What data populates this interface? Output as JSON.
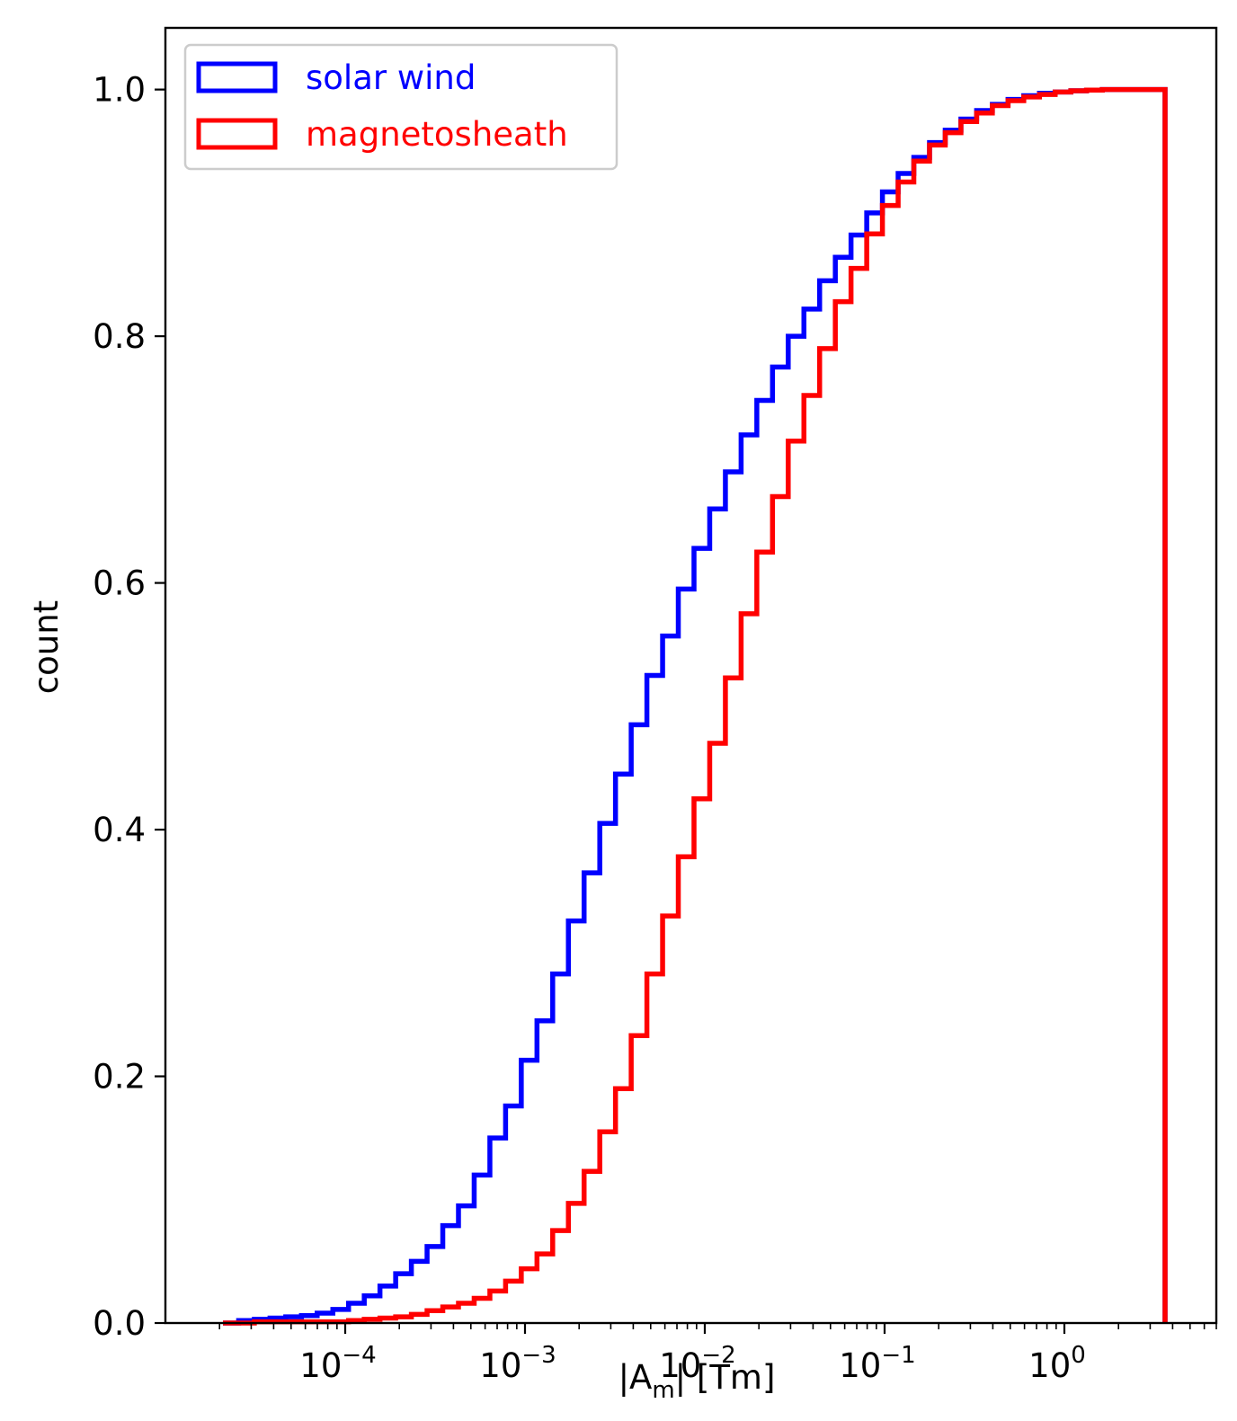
{
  "chart_data": {
    "type": "histogram-step-cumulative",
    "xlabel_base": "|A",
    "xlabel_sub": "m",
    "xlabel_tail": "| [Tm]",
    "ylabel": "count",
    "x_scale": "log",
    "xlim": [
      1e-05,
      7
    ],
    "ylim": [
      0,
      1.05
    ],
    "yticks": [
      {
        "value": 0.0,
        "label": "0.0"
      },
      {
        "value": 0.2,
        "label": "0.2"
      },
      {
        "value": 0.4,
        "label": "0.4"
      },
      {
        "value": 0.6,
        "label": "0.6"
      },
      {
        "value": 0.8,
        "label": "0.8"
      },
      {
        "value": 1.0,
        "label": "1.0"
      }
    ],
    "xticks": [
      {
        "value": 0.0001,
        "base": "10",
        "exp": "−4"
      },
      {
        "value": 0.001,
        "base": "10",
        "exp": "−3"
      },
      {
        "value": 0.01,
        "base": "10",
        "exp": "−2"
      },
      {
        "value": 0.1,
        "base": "10",
        "exp": "−1"
      },
      {
        "value": 1,
        "base": "10",
        "exp": "0"
      }
    ],
    "bins": {
      "log10_min": -4.68,
      "log10_max": 0.56,
      "count": 60
    },
    "legend_position": "upper-left",
    "series": [
      {
        "name": "solar wind",
        "color": "#0000ff",
        "cdf": [
          0.0,
          0.002,
          0.003,
          0.004,
          0.005,
          0.006,
          0.008,
          0.011,
          0.016,
          0.022,
          0.03,
          0.04,
          0.05,
          0.062,
          0.079,
          0.095,
          0.12,
          0.15,
          0.176,
          0.213,
          0.245,
          0.283,
          0.326,
          0.365,
          0.405,
          0.445,
          0.485,
          0.525,
          0.557,
          0.595,
          0.628,
          0.66,
          0.69,
          0.72,
          0.748,
          0.775,
          0.8,
          0.822,
          0.845,
          0.864,
          0.882,
          0.9,
          0.917,
          0.932,
          0.945,
          0.957,
          0.967,
          0.976,
          0.983,
          0.988,
          0.992,
          0.995,
          0.997,
          0.998,
          0.999,
          0.9995,
          1.0,
          1.0,
          1.0,
          1.0
        ]
      },
      {
        "name": "magnetosheath",
        "color": "#ff0000",
        "cdf": [
          0.0,
          0.0,
          0.001,
          0.001,
          0.001,
          0.001,
          0.001,
          0.001,
          0.002,
          0.003,
          0.004,
          0.005,
          0.007,
          0.01,
          0.013,
          0.016,
          0.02,
          0.026,
          0.034,
          0.044,
          0.056,
          0.075,
          0.097,
          0.123,
          0.155,
          0.19,
          0.233,
          0.283,
          0.33,
          0.378,
          0.425,
          0.47,
          0.523,
          0.575,
          0.625,
          0.67,
          0.715,
          0.752,
          0.79,
          0.828,
          0.855,
          0.883,
          0.906,
          0.925,
          0.942,
          0.955,
          0.965,
          0.974,
          0.981,
          0.987,
          0.991,
          0.994,
          0.996,
          0.998,
          0.999,
          0.9995,
          1.0,
          1.0,
          1.0,
          1.0
        ]
      }
    ]
  }
}
